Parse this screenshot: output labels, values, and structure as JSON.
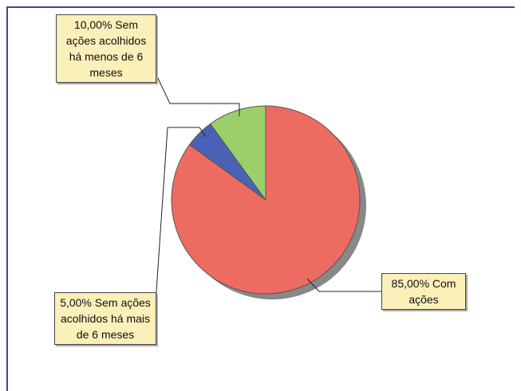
{
  "chart_data": {
    "type": "pie",
    "values": [
      85,
      5,
      10
    ],
    "value_labels": [
      "85,00% Com ações",
      "5,00% Sem ações acolhidos há mais de 6 meses",
      "10,00% Sem ações acolhidos há menos de 6 meses"
    ],
    "colors": [
      "#ee6b62",
      "#4a62b5",
      "#9ccf6a"
    ]
  }
}
